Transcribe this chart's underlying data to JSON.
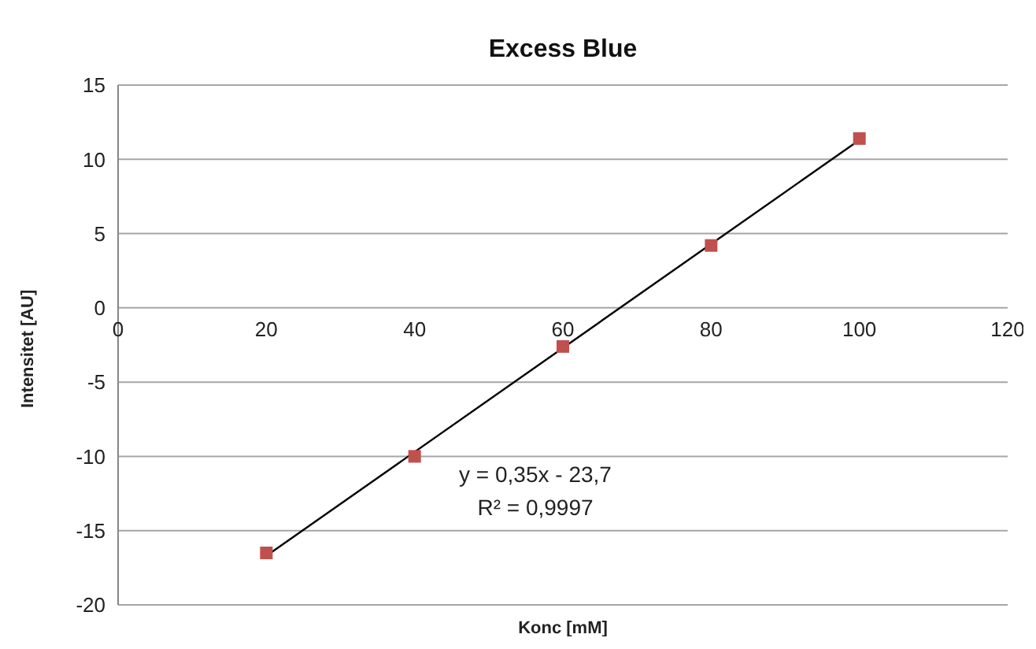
{
  "chart_data": {
    "type": "scatter",
    "title": "Excess Blue",
    "xlabel": "Konc [mM]",
    "ylabel": "Intensitet [AU]",
    "x": [
      20,
      40,
      60,
      80,
      100
    ],
    "series": [
      {
        "color": "#c0504d",
        "marker": "square",
        "values": [
          -16.5,
          -10,
          -2.6,
          4.2,
          11.4
        ]
      },
      {
        "type": "line",
        "color": "#000000",
        "marker": "none",
        "x": [
          20,
          100
        ],
        "values": [
          -16.7,
          11.3
        ]
      }
    ],
    "xlim": [
      0,
      120
    ],
    "xticks": [
      0,
      20,
      40,
      60,
      80,
      100,
      120
    ],
    "ylim": [
      -20,
      15
    ],
    "yticks": [
      -20,
      -15,
      -10,
      -5,
      0,
      5,
      10,
      15
    ],
    "grid": "y",
    "annotations": [
      "y = 0,35x - 23,7",
      "R² = 0,9997"
    ]
  }
}
